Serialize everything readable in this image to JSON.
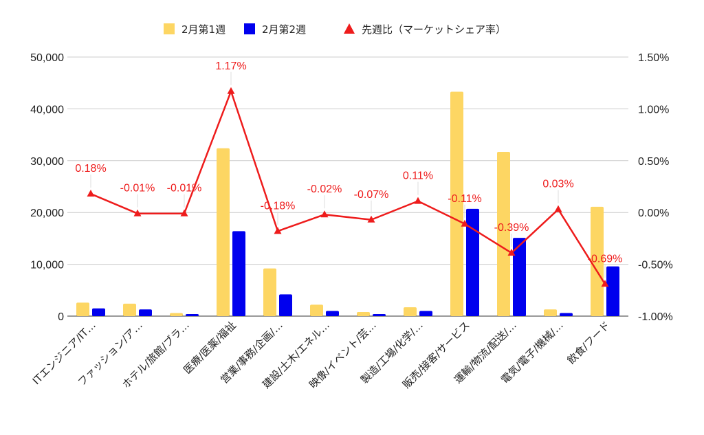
{
  "chart_data": {
    "type": "bar+line",
    "categories": [
      "ITエンジニア/IT…",
      "ファッション/ア…",
      "ホテル/旅館/ブラ…",
      "医療/医薬/福祉",
      "営業/事務/企画/…",
      "建設/土木/エネル…",
      "映像/イベント/芸…",
      "製造/工場/化学/…",
      "販売/接客/サービス",
      "運輸/物流/配送/…",
      "電気/電子/機械/…",
      "飲食/フード"
    ],
    "series": [
      {
        "name": "2月第1週",
        "type": "bar",
        "axis": "left",
        "color": "#fdd663",
        "values": [
          2600,
          2400,
          600,
          32400,
          9200,
          2200,
          800,
          1700,
          43300,
          31700,
          1300,
          21100
        ]
      },
      {
        "name": "2月第2週",
        "type": "bar",
        "axis": "left",
        "color": "#0000ee",
        "values": [
          1500,
          1300,
          400,
          16400,
          4200,
          1000,
          400,
          1000,
          20700,
          15100,
          600,
          9600
        ]
      },
      {
        "name": "先週比（マーケットシェア率）",
        "type": "line",
        "axis": "right",
        "color": "#ee1c1c",
        "values": [
          0.18,
          -0.01,
          -0.01,
          1.17,
          -0.18,
          -0.02,
          -0.07,
          0.11,
          -0.11,
          -0.39,
          0.03,
          -0.69
        ],
        "labels": [
          "0.18%",
          "-0.01%",
          "-0.01%",
          "1.17%",
          "-0.18%",
          "-0.02%",
          "-0.07%",
          "0.11%",
          "-0.11%",
          "-0.39%",
          "0.03%",
          "-0.69%"
        ]
      }
    ],
    "y_left": {
      "min": 0,
      "max": 50000,
      "ticks": [
        "0",
        "10,000",
        "20,000",
        "30,000",
        "40,000",
        "50,000"
      ]
    },
    "y_right": {
      "min": -1.0,
      "max": 1.5,
      "ticks": [
        "-1.00%",
        "-0.50%",
        "0.00%",
        "0.50%",
        "1.00%",
        "1.50%"
      ]
    },
    "grid": true,
    "legend_position": "top"
  }
}
